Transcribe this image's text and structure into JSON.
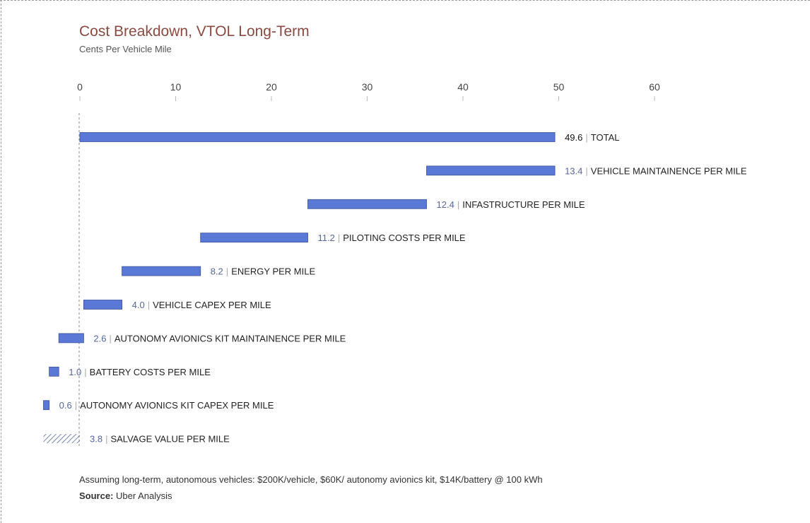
{
  "header": {
    "title": "Cost Breakdown, VTOL Long-Term",
    "subtitle": "Cents Per Vehicle Mile"
  },
  "footer": {
    "note": "Assuming long-term, autonomous vehicles: $200K/vehicle, $60K/ autonomy avionics kit, $14K/battery @ 100 kWh",
    "source_label": "Source:",
    "source_value": "Uber Analysis"
  },
  "colors": {
    "bar": "#5a78d6",
    "bar_border": "#3c4f9a",
    "hatch": "#5566a0",
    "title": "#8a4a40"
  },
  "chart_data": {
    "type": "bar",
    "orientation": "horizontal",
    "subtype": "waterfall",
    "title": "Cost Breakdown, VTOL Long-Term",
    "subtitle": "Cents Per Vehicle Mile",
    "xlim": [
      0,
      60
    ],
    "xticks": [
      0,
      10,
      20,
      30,
      40,
      50,
      60
    ],
    "grid": false,
    "items": [
      {
        "label": "TOTAL",
        "value": 49.6,
        "display": "49.6",
        "start": 0,
        "end": 49.6,
        "kind": "total"
      },
      {
        "label": "VEHICLE MAINTAINENCE PER MILE",
        "value": 13.4,
        "display": "13.4",
        "start": 36.2,
        "end": 49.6,
        "kind": "cost"
      },
      {
        "label": "INFASTRUCTURE PER MILE",
        "value": 12.4,
        "display": "12.4",
        "start": 23.8,
        "end": 36.2,
        "kind": "cost"
      },
      {
        "label": "PILOTING COSTS PER MILE",
        "value": 11.2,
        "display": "11.2",
        "start": 12.6,
        "end": 23.8,
        "kind": "cost"
      },
      {
        "label": "ENERGY PER MILE",
        "value": 8.2,
        "display": "8.2",
        "start": 4.4,
        "end": 12.6,
        "kind": "cost"
      },
      {
        "label": "VEHICLE CAPEX PER MILE",
        "value": 4.0,
        "display": "4.0",
        "start": 0.4,
        "end": 4.4,
        "kind": "cost"
      },
      {
        "label": "AUTONOMY AVIONICS KIT MAINTAINENCE PER MILE",
        "value": 2.6,
        "display": "2.6",
        "start": -2.2,
        "end": 0.4,
        "kind": "cost"
      },
      {
        "label": "BATTERY COSTS PER MILE",
        "value": 1.0,
        "display": "1.0",
        "start": -3.2,
        "end": -2.2,
        "kind": "cost"
      },
      {
        "label": "AUTONOMY AVIONICS KIT CAPEX PER MILE",
        "value": 0.6,
        "display": "0.6",
        "start": -3.8,
        "end": -3.2,
        "kind": "cost"
      },
      {
        "label": "SALVAGE VALUE PER MILE",
        "value": 3.8,
        "display": "3.8",
        "start": -3.8,
        "end": 0,
        "kind": "salvage"
      }
    ]
  }
}
